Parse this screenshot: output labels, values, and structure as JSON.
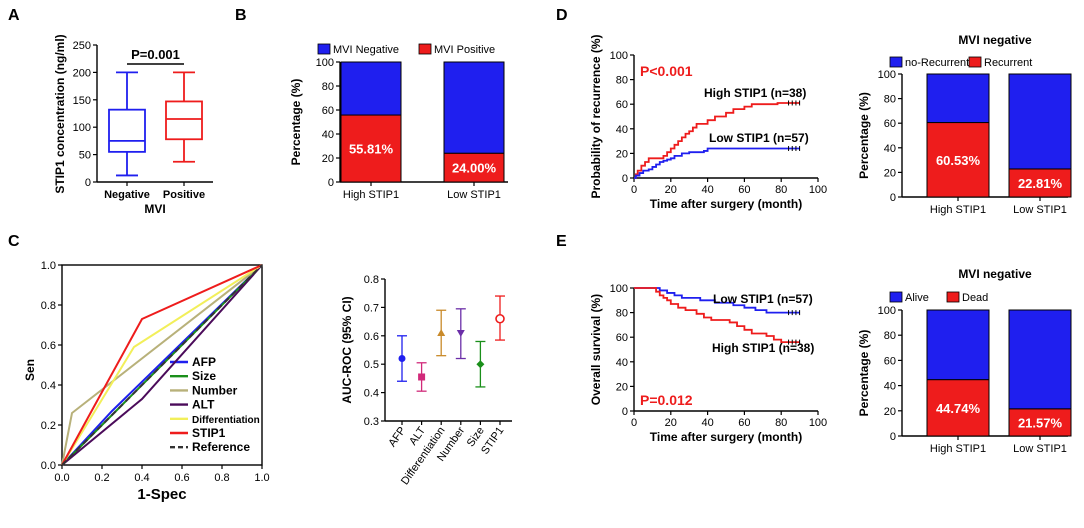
{
  "colors": {
    "blue": "#1f1fef",
    "red": "#ee1c1c",
    "olive": "#b8b17a",
    "green": "#1a8f1a",
    "purple": "#4b0b5a",
    "yellow": "#f2ef5a",
    "navy": "#16237a",
    "gray": "#333333",
    "orange": "#c98a2a",
    "violet": "#6b2ea8"
  },
  "panels": [
    "A",
    "B",
    "C",
    "D",
    "E"
  ],
  "chart_data": [
    {
      "id": "A",
      "type": "box",
      "title": "",
      "ylabel": "STIP1 concentration (ng/ml)",
      "xlabel": "MVI",
      "ylim": [
        0,
        250
      ],
      "yticks": [
        "0",
        "50",
        "100",
        "150",
        "200",
        "250"
      ],
      "categories": [
        "Negative",
        "Positive"
      ],
      "annotation": "P=0.001",
      "boxes": [
        {
          "name": "Negative",
          "min": 12,
          "q1": 55,
          "median": 75,
          "q3": 132,
          "max": 200,
          "color": "#1f1fef"
        },
        {
          "name": "Positive",
          "min": 37,
          "q1": 78,
          "median": 115,
          "q3": 147,
          "max": 200,
          "color": "#ee1c1c"
        }
      ]
    },
    {
      "id": "B",
      "type": "stacked_bar",
      "ylabel": "Percentage (%)",
      "ylim": [
        0,
        100
      ],
      "yticks": [
        "0",
        "20",
        "40",
        "60",
        "80",
        "100"
      ],
      "categories": [
        "High STIP1",
        "Low STIP1"
      ],
      "legend": [
        "MVI Negative",
        "MVI Positive"
      ],
      "series": [
        {
          "name": "MVI Positive",
          "values": [
            55.81,
            24.0
          ],
          "color": "#ee1c1c"
        },
        {
          "name": "MVI Negative",
          "values": [
            44.19,
            76.0
          ],
          "color": "#1f1fef"
        }
      ],
      "labels": [
        "55.81%",
        "24.00%"
      ]
    },
    {
      "id": "C1",
      "type": "roc",
      "xlabel": "1-Spec",
      "ylabel": "Sen",
      "xlim": [
        0,
        1
      ],
      "ylim": [
        0,
        1
      ],
      "xticks": [
        "0.0",
        "0.2",
        "0.4",
        "0.6",
        "0.8",
        "1.0"
      ],
      "yticks": [
        "0.0",
        "0.2",
        "0.4",
        "0.6",
        "0.8",
        "1.0"
      ],
      "series": [
        {
          "name": "AFP",
          "color": "#1f1fef",
          "points": [
            [
              0,
              0
            ],
            [
              0.25,
              0.27
            ],
            [
              1,
              1
            ]
          ]
        },
        {
          "name": "Size",
          "color": "#1a8f1a",
          "points": [
            [
              0,
              0
            ],
            [
              0.3,
              0.3
            ],
            [
              1,
              1
            ]
          ]
        },
        {
          "name": "Number",
          "color": "#b8b17a",
          "points": [
            [
              0,
              0
            ],
            [
              0.05,
              0.26
            ],
            [
              1,
              1
            ]
          ]
        },
        {
          "name": "ALT",
          "color": "#4b0b5a",
          "points": [
            [
              0,
              0
            ],
            [
              0.4,
              0.33
            ],
            [
              1,
              1
            ]
          ]
        },
        {
          "name": "Differentiation",
          "color": "#f2ef5a",
          "points": [
            [
              0,
              0
            ],
            [
              0.36,
              0.59
            ],
            [
              1,
              1
            ]
          ]
        },
        {
          "name": "STIP1",
          "color": "#ee1c1c",
          "points": [
            [
              0,
              0
            ],
            [
              0.4,
              0.73
            ],
            [
              1,
              1
            ]
          ]
        },
        {
          "name": "Reference",
          "color": "#333333",
          "dashed": true,
          "points": [
            [
              0,
              0
            ],
            [
              1,
              1
            ]
          ]
        }
      ]
    },
    {
      "id": "C2",
      "type": "errorbar",
      "ylabel": "AUC-ROC (95% CI)",
      "ylim": [
        0.3,
        0.8
      ],
      "yticks": [
        "0.3",
        "0.4",
        "0.5",
        "0.6",
        "0.7",
        "0.8"
      ],
      "categories": [
        "AFP",
        "ALT",
        "Differentiation",
        "Number",
        "Size",
        "STIP1"
      ],
      "points": [
        {
          "name": "AFP",
          "mean": 0.52,
          "low": 0.44,
          "high": 0.6,
          "color": "#1f1fef",
          "marker": "circle"
        },
        {
          "name": "ALT",
          "mean": 0.455,
          "low": 0.405,
          "high": 0.505,
          "color": "#d12a7a",
          "marker": "square"
        },
        {
          "name": "Differentiation",
          "mean": 0.61,
          "low": 0.53,
          "high": 0.69,
          "color": "#c98a2a",
          "marker": "triangle"
        },
        {
          "name": "Number",
          "mean": 0.61,
          "low": 0.52,
          "high": 0.695,
          "color": "#6b2ea8",
          "marker": "tri-down"
        },
        {
          "name": "Size",
          "mean": 0.5,
          "low": 0.42,
          "high": 0.58,
          "color": "#1a8f1a",
          "marker": "diamond"
        },
        {
          "name": "STIP1",
          "mean": 0.66,
          "low": 0.585,
          "high": 0.74,
          "color": "#ee1c1c",
          "marker": "open-circle"
        }
      ]
    },
    {
      "id": "D1",
      "type": "km",
      "xlabel": "Time after surgery (month)",
      "ylabel": "Probability of recurrence (%)",
      "xlim": [
        0,
        100
      ],
      "ylim": [
        0,
        100
      ],
      "xticks": [
        "0",
        "20",
        "40",
        "60",
        "80",
        "100"
      ],
      "yticks": [
        "0",
        "20",
        "40",
        "60",
        "80",
        "100"
      ],
      "annotation": "P<0.001",
      "labels": [
        "High STIP1 (n=38)",
        "Low STIP1 (n=57)"
      ],
      "series": [
        {
          "name": "High STIP1 (n=38)",
          "color": "#ee1c1c",
          "steps": [
            [
              0,
              0
            ],
            [
              1,
              3
            ],
            [
              2,
              6
            ],
            [
              4,
              10
            ],
            [
              6,
              13
            ],
            [
              8,
              16
            ],
            [
              14,
              16
            ],
            [
              16,
              18
            ],
            [
              18,
              21
            ],
            [
              20,
              24
            ],
            [
              22,
              27
            ],
            [
              24,
              30
            ],
            [
              26,
              33
            ],
            [
              28,
              36
            ],
            [
              30,
              38
            ],
            [
              32,
              41
            ],
            [
              34,
              44
            ],
            [
              40,
              47
            ],
            [
              44,
              50
            ],
            [
              50,
              53
            ],
            [
              54,
              56
            ],
            [
              60,
              58
            ],
            [
              64,
              60
            ],
            [
              78,
              61
            ],
            [
              90,
              61
            ]
          ]
        },
        {
          "name": "Low STIP1 (n=57)",
          "color": "#1f1fef",
          "steps": [
            [
              0,
              0
            ],
            [
              1,
              2
            ],
            [
              3,
              4
            ],
            [
              5,
              6
            ],
            [
              8,
              7
            ],
            [
              10,
              9
            ],
            [
              12,
              11
            ],
            [
              14,
              13
            ],
            [
              16,
              14
            ],
            [
              18,
              15
            ],
            [
              20,
              16
            ],
            [
              22,
              18
            ],
            [
              26,
              20
            ],
            [
              30,
              21
            ],
            [
              38,
              22
            ],
            [
              40,
              24
            ],
            [
              90,
              24
            ]
          ]
        }
      ]
    },
    {
      "id": "D2",
      "type": "stacked_bar",
      "title": "MVI negative",
      "ylabel": "Percentage (%)",
      "ylim": [
        0,
        100
      ],
      "yticks": [
        "0",
        "20",
        "40",
        "60",
        "80",
        "100"
      ],
      "categories": [
        "High STIP1",
        "Low STIP1"
      ],
      "legend": [
        "no-Recurrent",
        "Recurrent"
      ],
      "series": [
        {
          "name": "Recurrent",
          "values": [
            60.53,
            22.81
          ],
          "color": "#ee1c1c"
        },
        {
          "name": "no-Recurrent",
          "values": [
            39.47,
            77.19
          ],
          "color": "#1f1fef"
        }
      ],
      "labels": [
        "60.53%",
        "22.81%"
      ]
    },
    {
      "id": "E1",
      "type": "km",
      "xlabel": "Time after surgery (month)",
      "ylabel": "Overall survival (%)",
      "xlim": [
        0,
        100
      ],
      "ylim": [
        0,
        100
      ],
      "xticks": [
        "0",
        "20",
        "40",
        "60",
        "80",
        "100"
      ],
      "yticks": [
        "0",
        "20",
        "40",
        "60",
        "80",
        "100"
      ],
      "annotation": "P=0.012",
      "labels": [
        "Low STIP1 (n=57)",
        "High STIP1 (n=38)"
      ],
      "series": [
        {
          "name": "Low STIP1 (n=57)",
          "color": "#1f1fef",
          "steps": [
            [
              0,
              100
            ],
            [
              12,
              100
            ],
            [
              14,
              98
            ],
            [
              18,
              96
            ],
            [
              22,
              94
            ],
            [
              26,
              92
            ],
            [
              34,
              92
            ],
            [
              36,
              90
            ],
            [
              44,
              88
            ],
            [
              54,
              86
            ],
            [
              60,
              84
            ],
            [
              66,
              82
            ],
            [
              72,
              80
            ],
            [
              90,
              80
            ]
          ]
        },
        {
          "name": "High STIP1 (n=38)",
          "color": "#ee1c1c",
          "steps": [
            [
              0,
              100
            ],
            [
              10,
              100
            ],
            [
              12,
              97
            ],
            [
              14,
              94
            ],
            [
              16,
              92
            ],
            [
              18,
              90
            ],
            [
              20,
              87
            ],
            [
              24,
              84
            ],
            [
              28,
              82
            ],
            [
              34,
              79
            ],
            [
              38,
              76
            ],
            [
              42,
              74
            ],
            [
              48,
              74
            ],
            [
              52,
              72
            ],
            [
              56,
              69
            ],
            [
              60,
              66
            ],
            [
              64,
              63
            ],
            [
              72,
              61
            ],
            [
              76,
              58
            ],
            [
              80,
              56
            ],
            [
              90,
              56
            ]
          ]
        }
      ]
    },
    {
      "id": "E2",
      "type": "stacked_bar",
      "title": "MVI negative",
      "ylabel": "Percentage (%)",
      "ylim": [
        0,
        100
      ],
      "yticks": [
        "0",
        "20",
        "40",
        "60",
        "80",
        "100"
      ],
      "categories": [
        "High STIP1",
        "Low STIP1"
      ],
      "legend": [
        "Alive",
        "Dead"
      ],
      "series": [
        {
          "name": "Dead",
          "values": [
            44.74,
            21.57
          ],
          "color": "#ee1c1c"
        },
        {
          "name": "Alive",
          "values": [
            55.26,
            78.43
          ],
          "color": "#1f1fef"
        }
      ],
      "labels": [
        "44.74%",
        "21.57%"
      ]
    }
  ]
}
